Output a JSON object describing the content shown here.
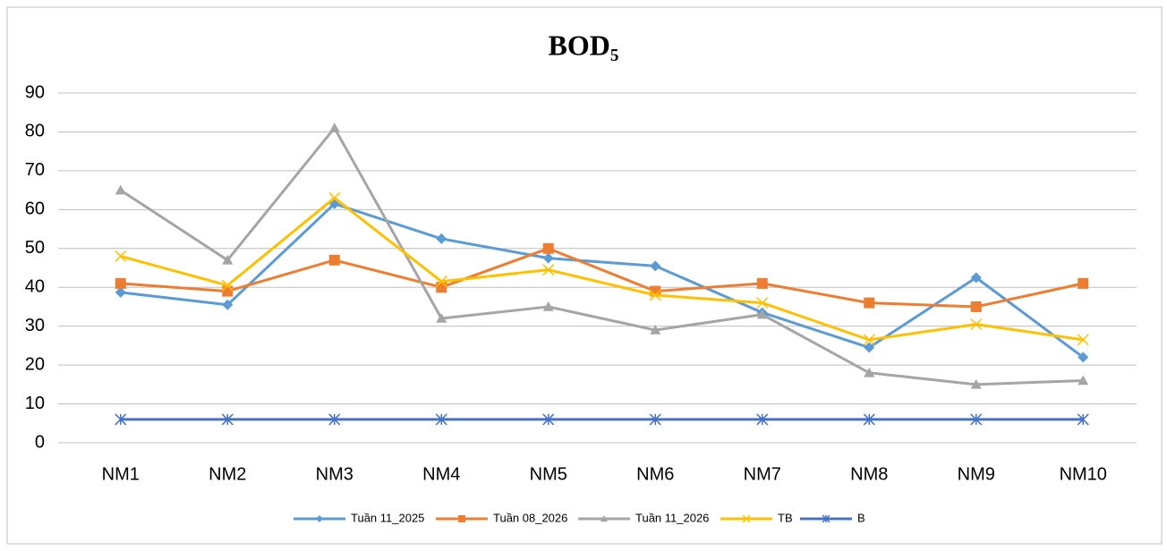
{
  "chart_data": {
    "type": "line",
    "title": "BOD₅",
    "categories": [
      "NM1",
      "NM2",
      "NM3",
      "NM4",
      "NM5",
      "NM6",
      "NM7",
      "NM8",
      "NM9",
      "NM10"
    ],
    "series": [
      {
        "name": "Tuần 11_2025",
        "color": "#5b9bd5",
        "marker": "diamond",
        "values": [
          38.7,
          35.5,
          61.5,
          52.5,
          47.5,
          45.5,
          33.5,
          24.5,
          42.5,
          22
        ]
      },
      {
        "name": "Tuần 08_2026",
        "color": "#ed7d31",
        "marker": "square",
        "values": [
          41,
          39,
          47,
          40,
          50,
          39,
          41,
          36,
          35,
          41
        ]
      },
      {
        "name": "Tuần 11_2026",
        "color": "#a5a5a5",
        "marker": "triangle",
        "values": [
          65,
          47,
          81,
          32,
          35,
          29,
          33,
          18,
          15,
          16
        ]
      },
      {
        "name": "TB",
        "color": "#ffc000",
        "marker": "x",
        "values": [
          48,
          40.5,
          63,
          41.5,
          44.5,
          38,
          36,
          26.5,
          30.5,
          26.5
        ]
      },
      {
        "name": "B",
        "color": "#4472c4",
        "marker": "star",
        "values": [
          6,
          6,
          6,
          6,
          6,
          6,
          6,
          6,
          6,
          6
        ]
      }
    ],
    "ylim": [
      0,
      90
    ],
    "yticks": [
      0,
      10,
      20,
      30,
      40,
      50,
      60,
      70,
      80,
      90
    ],
    "grid": true,
    "legend": "bottom"
  }
}
